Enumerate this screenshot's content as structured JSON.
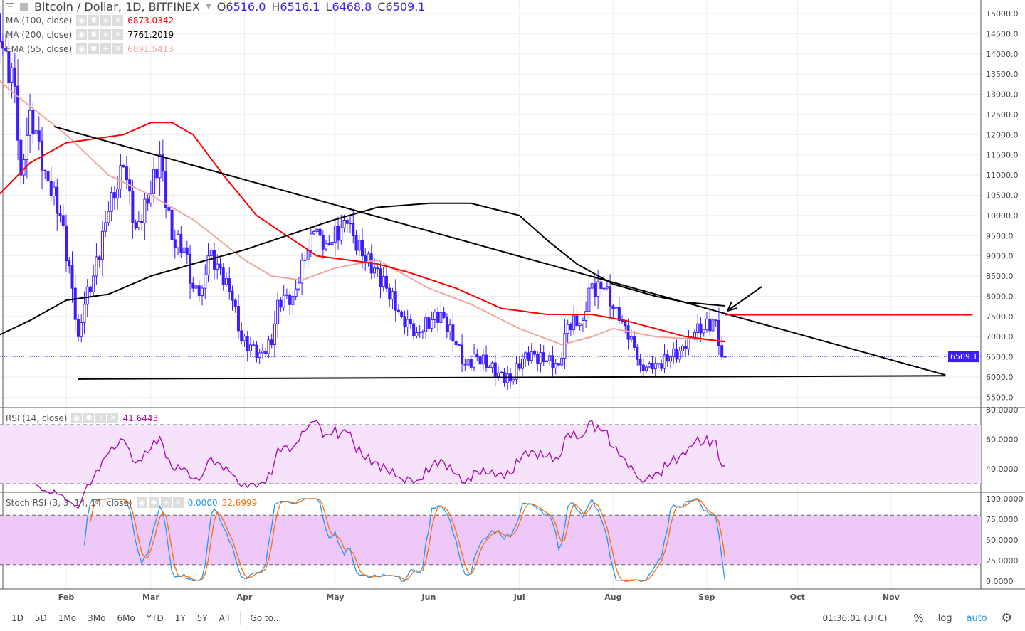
{
  "header": {
    "title": "Bitcoin / Dollar, 1D, BITFINEX",
    "o_label": "O",
    "o": "6516.0",
    "h_label": "H",
    "h": "6516.1",
    "l_label": "L",
    "l": "6468.8",
    "c_label": "C",
    "c": "6509.1"
  },
  "indicators": [
    {
      "label": "MA (100, close)",
      "value": "6873.0342",
      "color": "#ff0000"
    },
    {
      "label": "MA (200, close)",
      "value": "7761.2019",
      "color": "#000000"
    },
    {
      "label": "EMA (55, close)",
      "value": "6891.5413",
      "color": "#f3a6a0"
    }
  ],
  "rsi": {
    "label": "RSI (14, close)",
    "value": "41.6443",
    "color": "#ab00b4"
  },
  "stoch": {
    "label": "Stoch RSI (3, 3, 14, 14, close)",
    "k": "0.0000",
    "d": "32.6999",
    "k_color": "#2196f3",
    "d_color": "#ff6d00"
  },
  "toolbar": {
    "ranges": [
      "1D",
      "5D",
      "1Mo",
      "3Mo",
      "6Mo",
      "YTD",
      "1Y",
      "5Y",
      "All"
    ],
    "goto": "Go to...",
    "time": "01:36:01 (UTC)",
    "percent": "%",
    "log": "log",
    "auto": "auto"
  },
  "colors": {
    "candle": "#3a1cff",
    "grid": "#e9eff5"
  },
  "chart_data": {
    "type": "candlestick",
    "symbol": "Bitcoin / Dollar, 1D, BITFINEX",
    "x_ticks": [
      "Feb",
      "Mar",
      "Apr",
      "May",
      "Jun",
      "Jul",
      "Aug",
      "Sep",
      "Oct",
      "Nov"
    ],
    "y_ticks": [
      15000,
      14500,
      14000,
      13500,
      13000,
      12500,
      12000,
      11500,
      11000,
      10500,
      10000,
      9500,
      9000,
      8500,
      8000,
      7500,
      7000,
      6500,
      6000,
      5500
    ],
    "ylim": [
      5500,
      15000
    ],
    "last_price": "6509.1",
    "close_keypoints": [
      [
        1,
        8,
        15000
      ],
      [
        1,
        10,
        14300
      ],
      [
        1,
        15,
        13200
      ],
      [
        1,
        17,
        11000
      ],
      [
        1,
        20,
        12600
      ],
      [
        1,
        25,
        11100
      ],
      [
        1,
        30,
        10000
      ],
      [
        2,
        3,
        8200
      ],
      [
        2,
        5,
        7000
      ],
      [
        2,
        7,
        7800
      ],
      [
        2,
        10,
        8500
      ],
      [
        2,
        15,
        10100
      ],
      [
        2,
        20,
        11200
      ],
      [
        2,
        24,
        9700
      ],
      [
        2,
        28,
        10300
      ],
      [
        3,
        4,
        11500
      ],
      [
        3,
        8,
        9400
      ],
      [
        3,
        12,
        9200
      ],
      [
        3,
        15,
        8200
      ],
      [
        3,
        18,
        8200
      ],
      [
        3,
        20,
        9000
      ],
      [
        3,
        24,
        8700
      ],
      [
        3,
        28,
        7900
      ],
      [
        3,
        31,
        6900
      ],
      [
        4,
        6,
        6600
      ],
      [
        4,
        10,
        6800
      ],
      [
        4,
        12,
        7900
      ],
      [
        4,
        17,
        8000
      ],
      [
        4,
        21,
        8900
      ],
      [
        4,
        24,
        9600
      ],
      [
        4,
        28,
        9300
      ],
      [
        5,
        5,
        9800
      ],
      [
        5,
        10,
        9000
      ],
      [
        5,
        14,
        8700
      ],
      [
        5,
        18,
        8200
      ],
      [
        5,
        23,
        7500
      ],
      [
        5,
        28,
        7100
      ],
      [
        6,
        5,
        7600
      ],
      [
        6,
        10,
        6800
      ],
      [
        6,
        13,
        6300
      ],
      [
        6,
        17,
        6500
      ],
      [
        6,
        24,
        6100
      ],
      [
        6,
        28,
        5900
      ],
      [
        7,
        3,
        6600
      ],
      [
        7,
        10,
        6400
      ],
      [
        7,
        14,
        6300
      ],
      [
        7,
        17,
        7300
      ],
      [
        7,
        22,
        7400
      ],
      [
        7,
        24,
        8200
      ],
      [
        7,
        29,
        8200
      ],
      [
        8,
        3,
        7400
      ],
      [
        8,
        7,
        7000
      ],
      [
        8,
        10,
        6300
      ],
      [
        8,
        14,
        6200
      ],
      [
        8,
        20,
        6500
      ],
      [
        8,
        25,
        6700
      ],
      [
        8,
        28,
        7100
      ],
      [
        9,
        4,
        7400
      ],
      [
        9,
        6,
        6500
      ],
      [
        9,
        7,
        6509.1
      ]
    ],
    "ma100": [
      [
        1,
        3,
        10000
      ],
      [
        1,
        20,
        11300
      ],
      [
        2,
        1,
        11800
      ],
      [
        2,
        20,
        12000
      ],
      [
        3,
        1,
        12300
      ],
      [
        3,
        8,
        12300
      ],
      [
        3,
        15,
        12000
      ],
      [
        3,
        25,
        11000
      ],
      [
        4,
        5,
        10000
      ],
      [
        4,
        15,
        9500
      ],
      [
        4,
        25,
        9000
      ],
      [
        5,
        5,
        8900
      ],
      [
        5,
        15,
        8800
      ],
      [
        5,
        25,
        8600
      ],
      [
        6,
        10,
        8200
      ],
      [
        6,
        25,
        7700
      ],
      [
        7,
        10,
        7550
      ],
      [
        7,
        25,
        7550
      ],
      [
        8,
        5,
        7400
      ],
      [
        8,
        15,
        7200
      ],
      [
        8,
        25,
        7000
      ],
      [
        9,
        7,
        6873
      ]
    ],
    "ma200": [
      [
        1,
        3,
        6800
      ],
      [
        1,
        20,
        7400
      ],
      [
        2,
        1,
        7900
      ],
      [
        2,
        15,
        8050
      ],
      [
        3,
        1,
        8500
      ],
      [
        3,
        15,
        8800
      ],
      [
        4,
        1,
        9150
      ],
      [
        4,
        15,
        9500
      ],
      [
        5,
        1,
        9900
      ],
      [
        5,
        15,
        10200
      ],
      [
        6,
        1,
        10300
      ],
      [
        6,
        15,
        10300
      ],
      [
        7,
        1,
        10000
      ],
      [
        7,
        10,
        9400
      ],
      [
        7,
        20,
        8800
      ],
      [
        8,
        1,
        8300
      ],
      [
        8,
        15,
        8000
      ],
      [
        8,
        25,
        7850
      ],
      [
        9,
        7,
        7761
      ]
    ],
    "ema55": [
      [
        1,
        3,
        13800
      ],
      [
        1,
        15,
        13000
      ],
      [
        2,
        1,
        12000
      ],
      [
        2,
        15,
        11000
      ],
      [
        3,
        1,
        10500
      ],
      [
        3,
        15,
        9900
      ],
      [
        4,
        1,
        8900
      ],
      [
        4,
        10,
        8500
      ],
      [
        4,
        20,
        8400
      ],
      [
        5,
        1,
        8700
      ],
      [
        5,
        15,
        8900
      ],
      [
        6,
        1,
        8200
      ],
      [
        6,
        15,
        7800
      ],
      [
        7,
        1,
        7200
      ],
      [
        7,
        15,
        6800
      ],
      [
        7,
        25,
        7000
      ],
      [
        8,
        1,
        7200
      ],
      [
        8,
        15,
        7000
      ],
      [
        9,
        7,
        6891
      ]
    ],
    "trendlines": [
      {
        "from": [
          1,
          28,
          12200
        ],
        "to": [
          11,
          19,
          6050
        ],
        "color": "#000"
      },
      {
        "from": [
          2,
          5,
          5950
        ],
        "to": [
          11,
          19,
          6030
        ],
        "color": "#000"
      },
      {
        "from": [
          9,
          7,
          7540
        ],
        "to": [
          11,
          28,
          7540
        ],
        "color": "#ff0000"
      }
    ],
    "rsi_levels": [
      70,
      30
    ],
    "rsi_ticks": [
      "80.0000",
      "60.0000",
      "40.0000"
    ],
    "stoch_levels": [
      80,
      20
    ],
    "stoch_ticks": [
      "100.0000",
      "75.0000",
      "50.0000",
      "25.0000",
      "0.0000"
    ]
  }
}
